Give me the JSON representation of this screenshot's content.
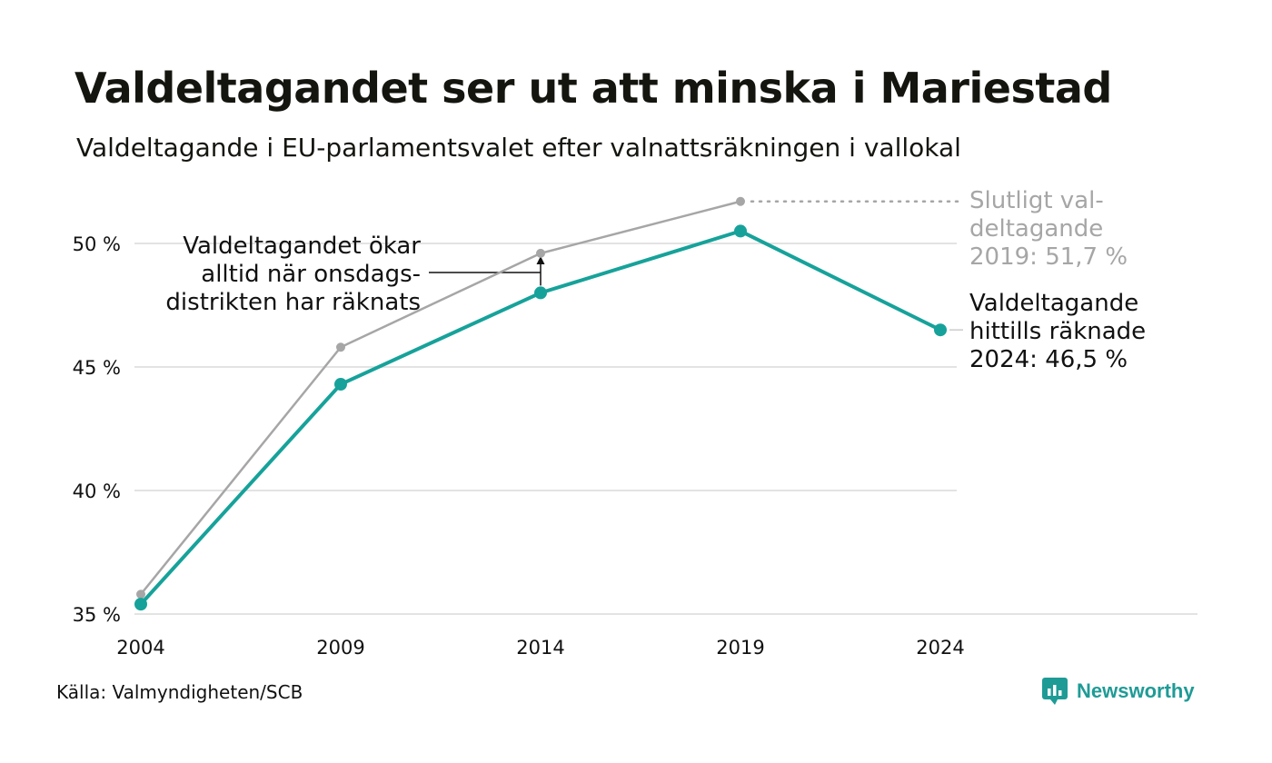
{
  "title": "Valdeltagandet ser ut att minska i Mariestad",
  "subtitle": "Valdeltagande i EU-parlamentsvalet efter valnattsräkningen i vallokal",
  "source": "Källa: Valmyndigheten/SCB",
  "brand": {
    "name": "Newsworthy",
    "logo_icon": "newsworthy-logo-icon",
    "color": "#1f9b96"
  },
  "chart_data": {
    "type": "line",
    "x": [
      "2004",
      "2009",
      "2014",
      "2019",
      "2024"
    ],
    "ylim": [
      35,
      51.7
    ],
    "yticks": [
      {
        "value": 35,
        "label": "35 %"
      },
      {
        "value": 40,
        "label": "40 %"
      },
      {
        "value": 45,
        "label": "45 %"
      },
      {
        "value": 50,
        "label": "50 %"
      }
    ],
    "grid": true,
    "series": [
      {
        "key": "final",
        "color": "#a6a6a6",
        "values": [
          35.8,
          45.8,
          49.6,
          51.7,
          null
        ]
      },
      {
        "key": "election_night",
        "color": "#16a29a",
        "values": [
          35.4,
          44.3,
          48.0,
          50.5,
          46.5
        ]
      }
    ],
    "annotations": {
      "arrow_note": [
        "Valdeltagandet ökar",
        "alltid när onsdags-",
        "distrikten har räknats"
      ],
      "final_label": [
        "Slutligt val-",
        "deltagande",
        "2019: 51,7 %"
      ],
      "current_label": [
        "Valdeltagande",
        "hittills räknade",
        "2024: 46,5 %"
      ]
    }
  }
}
